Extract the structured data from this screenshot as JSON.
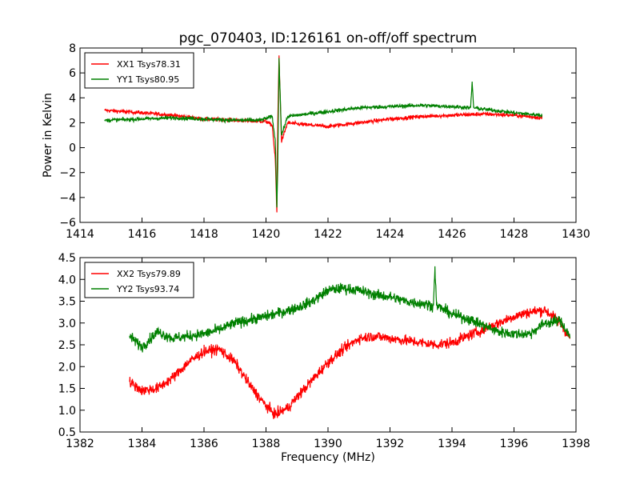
{
  "figure": {
    "title": "pgc_070403, ID:126161 on-off/off spectrum"
  },
  "chart_data": [
    {
      "type": "line",
      "title": "pgc_070403, ID:126161 on-off/off spectrum",
      "xlabel": "",
      "ylabel": "Power in Kelvin",
      "xlim": [
        1414,
        1430
      ],
      "ylim": [
        -6,
        8
      ],
      "xticks": [
        "1414",
        "1416",
        "1418",
        "1420",
        "1422",
        "1424",
        "1426",
        "1428",
        "1430"
      ],
      "yticks": [
        "−6",
        "−4",
        "−2",
        "0",
        "2",
        "4",
        "6",
        "8"
      ],
      "xtick_values": [
        1414,
        1416,
        1418,
        1420,
        1422,
        1424,
        1426,
        1428,
        1430
      ],
      "ytick_values": [
        -6,
        -4,
        -2,
        0,
        2,
        4,
        6,
        8
      ],
      "legend_position": "top-left",
      "grid": false,
      "noise": 0.15,
      "series": [
        {
          "name": "XX1 Tsys78.31",
          "color": "#ff0000",
          "x": [
            1414.8,
            1416,
            1417,
            1418,
            1419,
            1420,
            1420.2,
            1420.3,
            1420.35,
            1420.38,
            1420.42,
            1420.5,
            1420.7,
            1421,
            1422,
            1423,
            1424,
            1425,
            1426,
            1427,
            1428,
            1428.9
          ],
          "y": [
            3.0,
            2.8,
            2.6,
            2.3,
            2.2,
            2.1,
            1.8,
            -1.0,
            -5.2,
            2.0,
            7.4,
            0.5,
            2.0,
            1.9,
            1.7,
            2.0,
            2.3,
            2.5,
            2.6,
            2.7,
            2.6,
            2.4
          ]
        },
        {
          "name": "YY1 Tsys80.95",
          "color": "#008000",
          "x": [
            1414.8,
            1416,
            1417,
            1418,
            1419,
            1419.8,
            1420.2,
            1420.3,
            1420.35,
            1420.38,
            1420.42,
            1420.5,
            1420.7,
            1421,
            1422,
            1423,
            1424,
            1425,
            1426,
            1426.6,
            1426.65,
            1426.7,
            1427,
            1428,
            1428.9
          ],
          "y": [
            2.2,
            2.3,
            2.4,
            2.3,
            2.2,
            2.2,
            2.5,
            0.5,
            -4.8,
            -1.5,
            7.2,
            1.0,
            2.5,
            2.6,
            2.9,
            3.2,
            3.3,
            3.4,
            3.3,
            3.2,
            5.3,
            3.2,
            3.1,
            2.8,
            2.6
          ]
        }
      ]
    },
    {
      "type": "line",
      "title": "",
      "xlabel": "Frequency (MHz)",
      "ylabel": "",
      "xlim": [
        1382,
        1398
      ],
      "ylim": [
        0.5,
        4.5
      ],
      "xticks": [
        "1382",
        "1384",
        "1386",
        "1388",
        "1390",
        "1392",
        "1394",
        "1396",
        "1398"
      ],
      "yticks": [
        "0.5",
        "1.0",
        "1.5",
        "2.0",
        "2.5",
        "3.0",
        "3.5",
        "4.0",
        "4.5"
      ],
      "xtick_values": [
        1382,
        1384,
        1386,
        1388,
        1390,
        1392,
        1394,
        1396,
        1398
      ],
      "ytick_values": [
        0.5,
        1.0,
        1.5,
        2.0,
        2.5,
        3.0,
        3.5,
        4.0,
        4.5
      ],
      "legend_position": "top-left",
      "grid": false,
      "noise": 0.12,
      "series": [
        {
          "name": "XX2 Tsys79.89",
          "color": "#ff0000",
          "x": [
            1383.6,
            1384,
            1384.5,
            1385,
            1385.5,
            1386,
            1386.5,
            1387,
            1387.5,
            1388,
            1388.3,
            1388.7,
            1389,
            1389.5,
            1390,
            1390.5,
            1391,
            1391.5,
            1392,
            1392.5,
            1393,
            1393.5,
            1394,
            1394.5,
            1395,
            1395.5,
            1396,
            1396.5,
            1397,
            1397.5,
            1397.8
          ],
          "y": [
            1.65,
            1.45,
            1.5,
            1.75,
            2.1,
            2.35,
            2.4,
            2.1,
            1.55,
            1.1,
            0.9,
            1.05,
            1.3,
            1.7,
            2.1,
            2.4,
            2.65,
            2.7,
            2.65,
            2.6,
            2.55,
            2.5,
            2.55,
            2.7,
            2.85,
            3.0,
            3.15,
            3.25,
            3.3,
            3.0,
            2.65
          ]
        },
        {
          "name": "YY2 Tsys93.74",
          "color": "#008000",
          "x": [
            1383.6,
            1384,
            1384.5,
            1385,
            1386,
            1386.5,
            1387,
            1388,
            1389,
            1389.5,
            1390,
            1390.5,
            1391,
            1391.5,
            1392,
            1392.5,
            1393,
            1393.4,
            1393.45,
            1393.5,
            1394,
            1394.5,
            1395,
            1395.5,
            1396,
            1396.5,
            1397,
            1397.5,
            1397.8
          ],
          "y": [
            2.7,
            2.45,
            2.8,
            2.65,
            2.75,
            2.85,
            3.0,
            3.15,
            3.35,
            3.5,
            3.75,
            3.8,
            3.75,
            3.65,
            3.6,
            3.5,
            3.45,
            3.4,
            4.3,
            3.4,
            3.2,
            3.1,
            2.95,
            2.8,
            2.75,
            2.75,
            3.0,
            3.05,
            2.7
          ]
        }
      ]
    }
  ]
}
